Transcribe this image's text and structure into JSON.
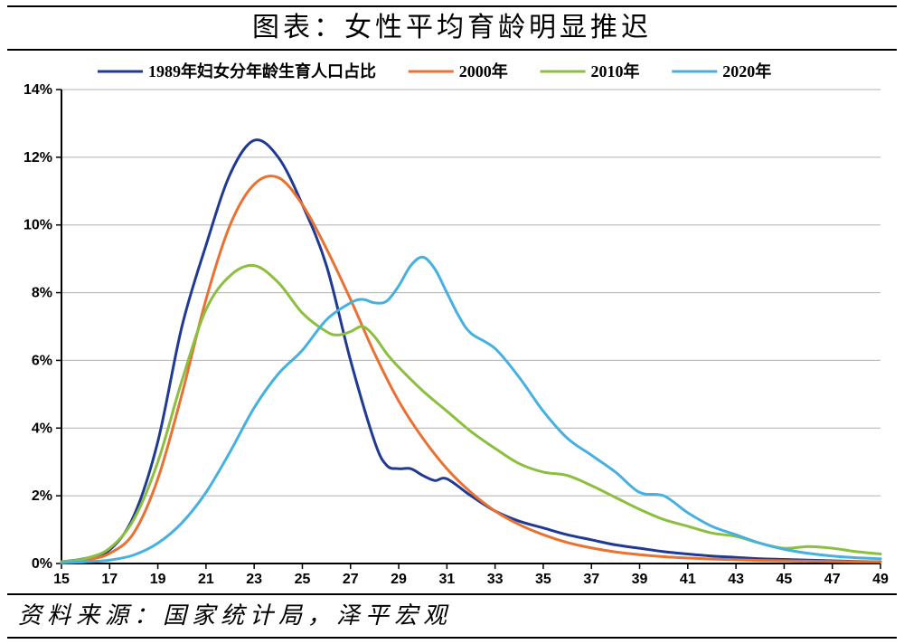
{
  "title": "图表：女性平均育龄明显推迟",
  "source": "资料来源：国家统计局，泽平宏观",
  "chart": {
    "type": "line",
    "background_color": "#ffffff",
    "grid_color": "#b0b0b0",
    "axis_color": "#000000",
    "tick_fontsize": 16,
    "legend_fontsize": 18,
    "legend_line_length": 50,
    "legend_line_width": 3,
    "x": {
      "min": 15,
      "max": 49,
      "tick_step": 2,
      "ticks": [
        15,
        17,
        19,
        21,
        23,
        25,
        27,
        29,
        31,
        33,
        35,
        37,
        39,
        41,
        43,
        45,
        47,
        49
      ]
    },
    "y": {
      "min": 0,
      "max": 14,
      "tick_step": 2,
      "ticks": [
        0,
        2,
        4,
        6,
        8,
        10,
        12,
        14
      ],
      "suffix": "%"
    },
    "line_width": 3,
    "series": [
      {
        "label": "1989年妇女分年龄生育人口占比",
        "color": "#1f3a93",
        "x": [
          15,
          16,
          17,
          18,
          19,
          20,
          21,
          22,
          23,
          24,
          25,
          26,
          27,
          28,
          28.5,
          29,
          29.5,
          30,
          30.5,
          31,
          32,
          33,
          34,
          35,
          36,
          37,
          38,
          39,
          40,
          41,
          42,
          43,
          44,
          45,
          46,
          47,
          48,
          49
        ],
        "y": [
          0.05,
          0.15,
          0.4,
          1.4,
          3.6,
          7.0,
          9.4,
          11.5,
          12.5,
          12.0,
          10.6,
          8.8,
          6.0,
          3.6,
          2.9,
          2.8,
          2.8,
          2.6,
          2.45,
          2.5,
          2.0,
          1.55,
          1.25,
          1.05,
          0.85,
          0.7,
          0.55,
          0.45,
          0.35,
          0.28,
          0.22,
          0.18,
          0.14,
          0.12,
          0.1,
          0.08,
          0.06,
          0.05
        ]
      },
      {
        "label": "2000年",
        "color": "#e97132",
        "x": [
          15,
          16,
          17,
          18,
          19,
          20,
          21,
          22,
          23,
          24,
          25,
          26,
          27,
          28,
          29,
          30,
          31,
          32,
          33,
          34,
          35,
          36,
          37,
          38,
          39,
          40,
          41,
          42,
          43,
          44,
          45,
          46,
          47,
          48,
          49
        ],
        "y": [
          0.05,
          0.1,
          0.3,
          0.9,
          2.5,
          5.0,
          7.8,
          10.0,
          11.2,
          11.4,
          10.6,
          9.3,
          7.8,
          6.2,
          4.8,
          3.7,
          2.8,
          2.1,
          1.55,
          1.15,
          0.85,
          0.62,
          0.46,
          0.34,
          0.26,
          0.2,
          0.16,
          0.13,
          0.11,
          0.09,
          0.08,
          0.07,
          0.06,
          0.05,
          0.05
        ]
      },
      {
        "label": "2010年",
        "color": "#8cbf3f",
        "x": [
          15,
          16,
          17,
          18,
          19,
          20,
          21,
          22,
          23,
          24,
          25,
          26,
          26.5,
          27,
          27.5,
          28,
          28.5,
          29,
          30,
          31,
          32,
          33,
          34,
          35,
          36,
          37,
          38,
          39,
          40,
          41,
          42,
          43,
          44,
          45,
          46,
          47,
          48,
          49
        ],
        "y": [
          0.05,
          0.15,
          0.45,
          1.3,
          3.0,
          5.4,
          7.5,
          8.5,
          8.8,
          8.3,
          7.4,
          6.85,
          6.75,
          6.85,
          7.0,
          6.7,
          6.2,
          5.8,
          5.1,
          4.5,
          3.9,
          3.4,
          2.95,
          2.7,
          2.6,
          2.3,
          1.95,
          1.6,
          1.3,
          1.1,
          0.9,
          0.8,
          0.6,
          0.45,
          0.5,
          0.45,
          0.35,
          0.28
        ]
      },
      {
        "label": "2020年",
        "color": "#46b1e1",
        "x": [
          15,
          16,
          17,
          18,
          19,
          20,
          21,
          22,
          23,
          24,
          25,
          26,
          27,
          27.5,
          28,
          28.5,
          29,
          29.5,
          30,
          30.5,
          31,
          31.5,
          32,
          33,
          34,
          35,
          36,
          37,
          38,
          39,
          40,
          41,
          42,
          43,
          44,
          45,
          46,
          47,
          48,
          49
        ],
        "y": [
          0.02,
          0.05,
          0.1,
          0.25,
          0.6,
          1.2,
          2.1,
          3.3,
          4.6,
          5.6,
          6.3,
          7.2,
          7.7,
          7.8,
          7.7,
          7.75,
          8.2,
          8.8,
          9.05,
          8.7,
          8.0,
          7.3,
          6.8,
          6.35,
          5.5,
          4.5,
          3.7,
          3.2,
          2.7,
          2.1,
          2.0,
          1.5,
          1.1,
          0.85,
          0.6,
          0.42,
          0.3,
          0.22,
          0.17,
          0.14
        ]
      }
    ]
  }
}
